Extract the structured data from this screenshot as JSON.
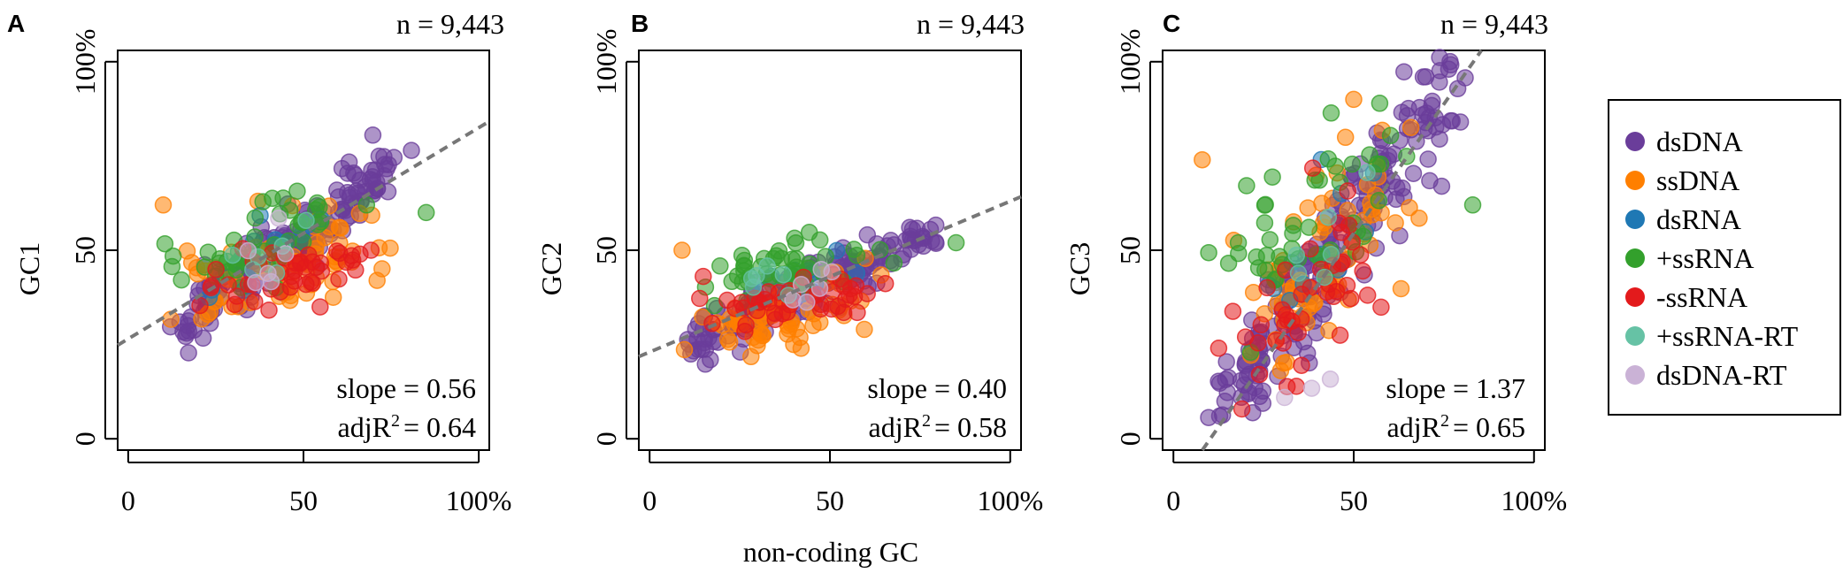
{
  "figure": {
    "shared_xlabel": "non-coding GC",
    "x_tick_labels": [
      "0",
      "50",
      "100%"
    ],
    "y_tick_labels": [
      "0",
      "50",
      "100%"
    ]
  },
  "legend": {
    "entries": [
      {
        "label": "dsDNA",
        "color": "#6a3d9a"
      },
      {
        "label": "ssDNA",
        "color": "#ff7f00"
      },
      {
        "label": "dsRNA",
        "color": "#1f78b4"
      },
      {
        "label": "+ssRNA",
        "color": "#33a02c"
      },
      {
        "label": "-ssRNA",
        "color": "#e31a1c"
      },
      {
        "label": "+ssRNA-RT",
        "color": "#66c2a5"
      },
      {
        "label": "dsDNA-RT",
        "color": "#cab2d6"
      }
    ]
  },
  "chart_data": [
    {
      "type": "scatter",
      "panel": "A",
      "n_label": "n = 9,443",
      "ylabel": "GC1",
      "xlabel": "non-coding GC",
      "xlim": [
        -3,
        103
      ],
      "ylim": [
        -3,
        103
      ],
      "slope_text": "slope = 0.56",
      "adjr2_prefix": "adjR",
      "adjr2_sup": "2",
      "adjr2_value": "= 0.64",
      "fit": {
        "slope": 0.56,
        "intercept": 26.5
      },
      "series": [
        {
          "name": "dsDNA",
          "clusters": [
            {
              "x0": 14,
              "x1": 76,
              "y0": 29,
              "y1": 72,
              "n": 160,
              "sx": 3,
              "sy": 3.5
            }
          ]
        },
        {
          "name": "ssDNA",
          "clusters": [
            {
              "x0": 18,
              "x1": 66,
              "y0": 37,
              "y1": 56,
              "n": 70,
              "sx": 6,
              "sy": 6
            }
          ],
          "extra": [
            [
              10,
              62
            ],
            [
              71,
              42
            ],
            [
              37,
              63
            ]
          ]
        },
        {
          "name": "dsRNA",
          "clusters": [
            {
              "x0": 25,
              "x1": 55,
              "y0": 44,
              "y1": 58,
              "n": 12,
              "sx": 5,
              "sy": 4
            }
          ]
        },
        {
          "name": "+ssRNA",
          "clusters": [
            {
              "x0": 20,
              "x1": 55,
              "y0": 45,
              "y1": 58,
              "n": 45,
              "sx": 7,
              "sy": 5
            }
          ],
          "extra": [
            [
              85,
              60
            ],
            [
              68,
              62
            ]
          ]
        },
        {
          "name": "-ssRNA",
          "clusters": [
            {
              "x0": 22,
              "x1": 60,
              "y0": 38,
              "y1": 48,
              "n": 45,
              "sx": 6,
              "sy": 4
            }
          ]
        },
        {
          "name": "+ssRNA-RT",
          "clusters": [
            {
              "x0": 30,
              "x1": 50,
              "y0": 46,
              "y1": 54,
              "n": 6,
              "sx": 4,
              "sy": 3
            }
          ]
        },
        {
          "name": "dsDNA-RT",
          "clusters": [
            {
              "x0": 30,
              "x1": 50,
              "y0": 44,
              "y1": 52,
              "n": 6,
              "sx": 4,
              "sy": 3
            }
          ]
        }
      ]
    },
    {
      "type": "scatter",
      "panel": "B",
      "n_label": "n = 9,443",
      "ylabel": "GC2",
      "xlabel": "non-coding GC",
      "xlim": [
        -3,
        103
      ],
      "ylim": [
        -3,
        103
      ],
      "slope_text": "slope = 0.40",
      "adjr2_prefix": "adjR",
      "adjr2_sup": "2",
      "adjr2_value": "= 0.58",
      "fit": {
        "slope": 0.4,
        "intercept": 23.0
      },
      "series": [
        {
          "name": "dsDNA",
          "clusters": [
            {
              "x0": 12,
              "x1": 80,
              "y0": 25,
              "y1": 56,
              "n": 160,
              "sx": 3,
              "sy": 3
            }
          ]
        },
        {
          "name": "ssDNA",
          "clusters": [
            {
              "x0": 18,
              "x1": 60,
              "y0": 28,
              "y1": 40,
              "n": 70,
              "sx": 6,
              "sy": 5
            }
          ],
          "extra": [
            [
              9,
              50
            ],
            [
              42,
              24
            ]
          ]
        },
        {
          "name": "dsRNA",
          "clusters": [
            {
              "x0": 25,
              "x1": 55,
              "y0": 40,
              "y1": 46,
              "n": 12,
              "sx": 5,
              "sy": 3
            }
          ]
        },
        {
          "name": "+ssRNA",
          "clusters": [
            {
              "x0": 18,
              "x1": 55,
              "y0": 40,
              "y1": 50,
              "n": 45,
              "sx": 6,
              "sy": 4
            }
          ],
          "extra": [
            [
              85,
              52
            ]
          ]
        },
        {
          "name": "-ssRNA",
          "clusters": [
            {
              "x0": 20,
              "x1": 60,
              "y0": 34,
              "y1": 40,
              "n": 45,
              "sx": 6,
              "sy": 3
            }
          ]
        },
        {
          "name": "+ssRNA-RT",
          "clusters": [
            {
              "x0": 30,
              "x1": 50,
              "y0": 40,
              "y1": 46,
              "n": 6,
              "sx": 4,
              "sy": 3
            }
          ]
        },
        {
          "name": "dsDNA-RT",
          "clusters": [
            {
              "x0": 30,
              "x1": 50,
              "y0": 38,
              "y1": 44,
              "n": 6,
              "sx": 4,
              "sy": 3
            }
          ]
        }
      ]
    },
    {
      "type": "scatter",
      "panel": "C",
      "n_label": "n = 9,443",
      "ylabel": "GC3",
      "xlabel": "non-coding GC",
      "xlim": [
        -3,
        103
      ],
      "ylim": [
        -3,
        103
      ],
      "slope_text": "slope = 1.37",
      "adjr2_prefix": "adjR",
      "adjr2_sup": "2",
      "adjr2_value": "= 0.65",
      "fit": {
        "slope": 1.37,
        "intercept": -14.0
      },
      "series": [
        {
          "name": "dsDNA",
          "clusters": [
            {
              "x0": 15,
              "x1": 76,
              "y0": 10,
              "y1": 94,
              "n": 190,
              "sx": 4,
              "sy": 6
            }
          ]
        },
        {
          "name": "ssDNA",
          "clusters": [
            {
              "x0": 22,
              "x1": 62,
              "y0": 30,
              "y1": 70,
              "n": 70,
              "sx": 7,
              "sy": 10
            }
          ],
          "extra": [
            [
              8,
              74
            ],
            [
              50,
              90
            ]
          ]
        },
        {
          "name": "dsRNA",
          "clusters": [
            {
              "x0": 25,
              "x1": 55,
              "y0": 35,
              "y1": 70,
              "n": 12,
              "sx": 6,
              "sy": 8
            }
          ]
        },
        {
          "name": "+ssRNA",
          "clusters": [
            {
              "x0": 22,
              "x1": 55,
              "y0": 45,
              "y1": 70,
              "n": 45,
              "sx": 6,
              "sy": 8
            }
          ],
          "extra": [
            [
              83,
              62
            ],
            [
              18,
              52
            ]
          ]
        },
        {
          "name": "-ssRNA",
          "clusters": [
            {
              "x0": 20,
              "x1": 50,
              "y0": 20,
              "y1": 50,
              "n": 45,
              "sx": 6,
              "sy": 8
            }
          ]
        },
        {
          "name": "+ssRNA-RT",
          "clusters": [
            {
              "x0": 28,
              "x1": 50,
              "y0": 40,
              "y1": 60,
              "n": 6,
              "sx": 4,
              "sy": 5
            }
          ]
        },
        {
          "name": "dsDNA-RT",
          "clusters": [
            {
              "x0": 30,
              "x1": 40,
              "y0": 12,
              "y1": 20,
              "n": 3,
              "sx": 3,
              "sy": 3
            }
          ]
        }
      ]
    }
  ]
}
